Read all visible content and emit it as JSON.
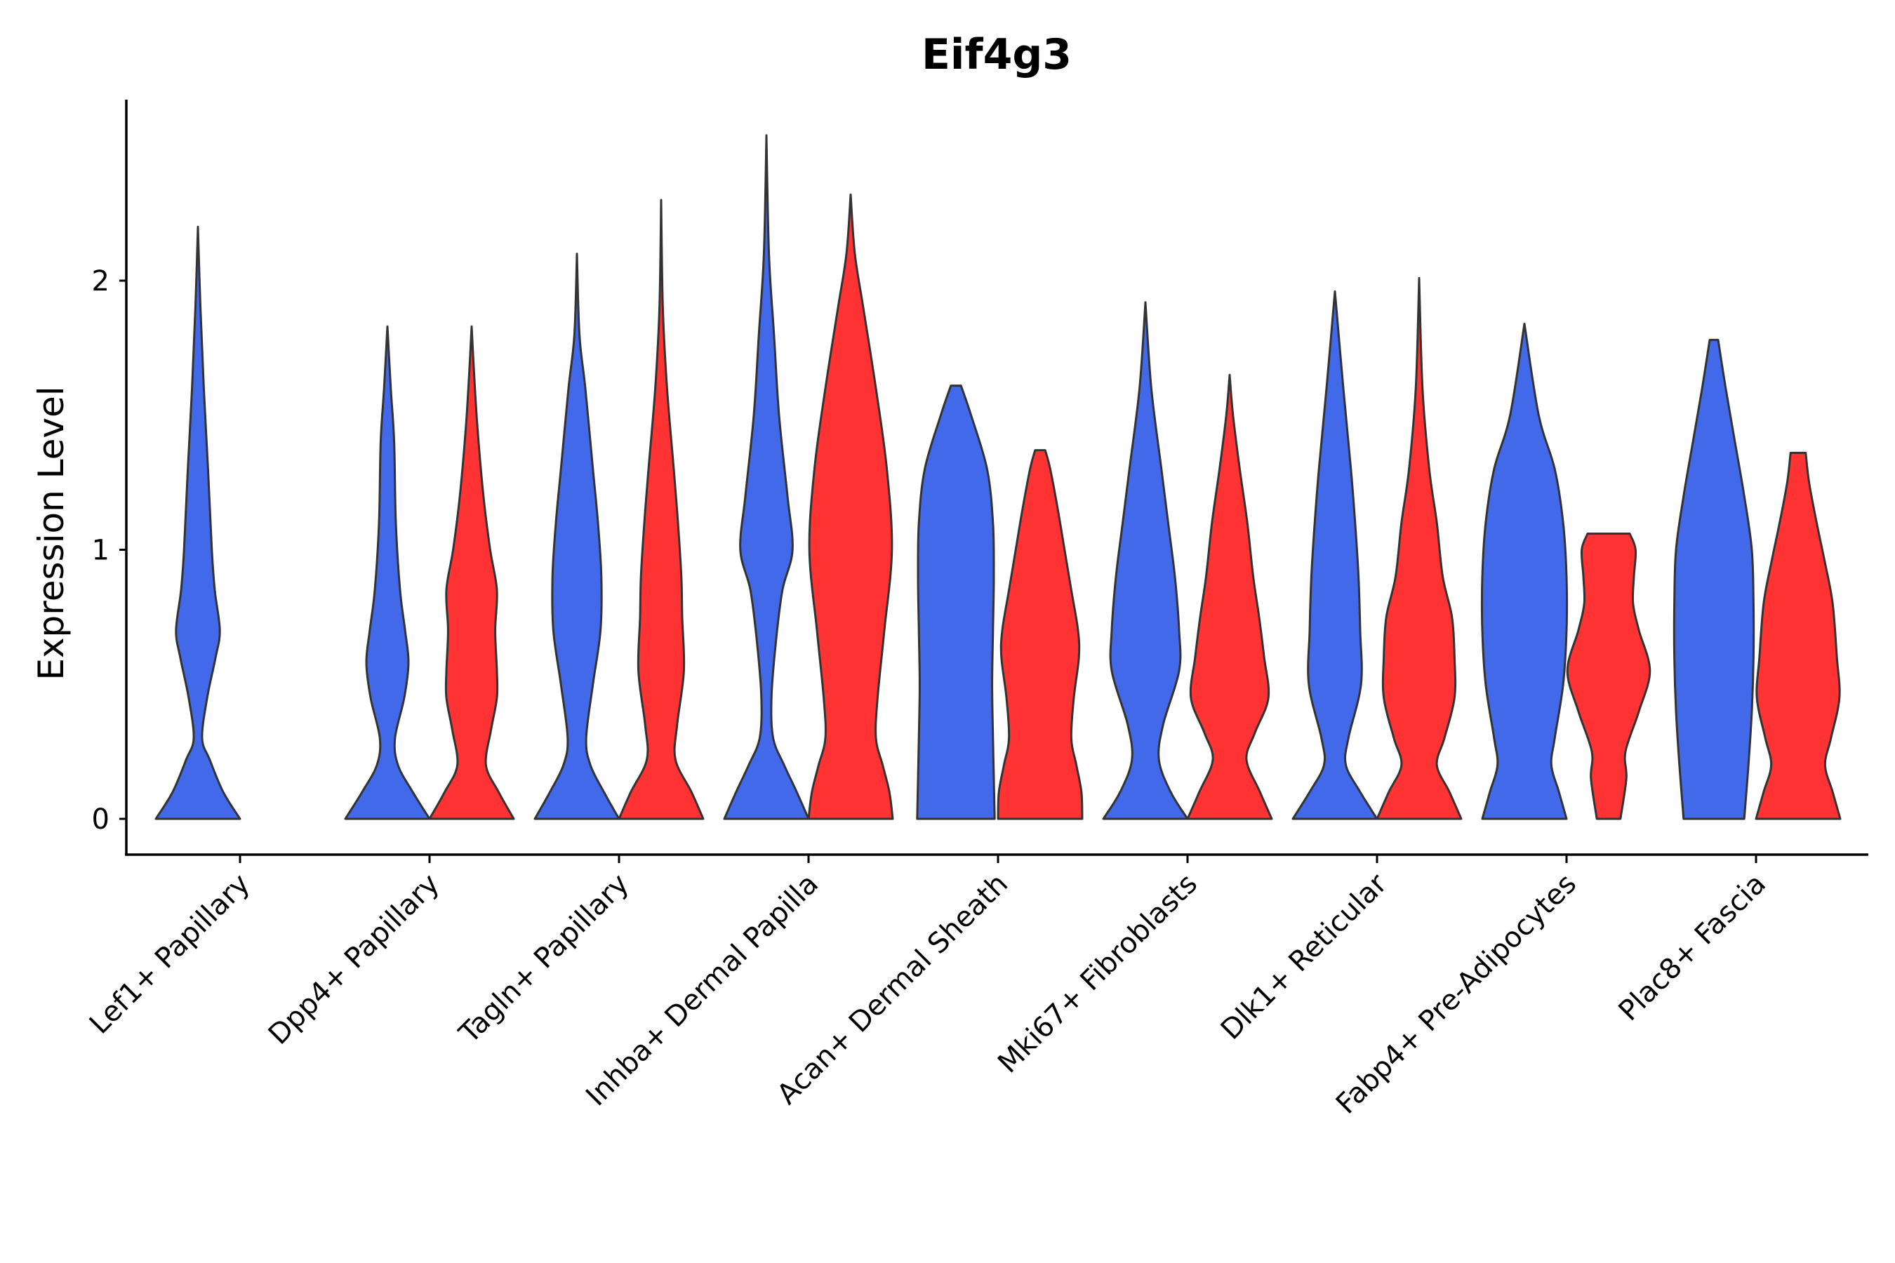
{
  "chart_data": {
    "type": "violin",
    "title": "Eif4g3",
    "xlabel": "",
    "ylabel": "Expression Level",
    "ylim": [
      -0.13,
      2.68
    ],
    "yticks": [
      0,
      1,
      2
    ],
    "grid": false,
    "legend": "none",
    "colors": {
      "group_a": "#4169E9",
      "group_b": "#FF3333",
      "outline": "#333333"
    },
    "categories": [
      "Lef1+ Papillary",
      "Dpp4+ Papillary",
      "Tagln+ Papillary",
      "Inhba+ Dermal Papilla",
      "Acan+ Dermal Sheath",
      "Mki67+ Fibroblasts",
      "Dlk1+ Reticular",
      "Fabp4+ Pre-Adipocytes",
      "Plac8+ Fascia"
    ],
    "series": [
      {
        "name": "group_a",
        "color": "#4169E9",
        "violins": [
          {
            "category": "Lef1+ Papillary",
            "max": 2.2,
            "profile": [
              [
                0,
                1.0
              ],
              [
                0.1,
                0.6
              ],
              [
                0.22,
                0.28
              ],
              [
                0.3,
                0.1
              ],
              [
                0.45,
                0.22
              ],
              [
                0.6,
                0.42
              ],
              [
                0.7,
                0.52
              ],
              [
                0.85,
                0.4
              ],
              [
                1.0,
                0.33
              ],
              [
                1.3,
                0.24
              ],
              [
                1.6,
                0.14
              ],
              [
                1.9,
                0.06
              ],
              [
                2.2,
                0.0
              ]
            ]
          },
          {
            "category": "Dpp4+ Papillary",
            "max": 1.83,
            "profile": [
              [
                0,
                1.0
              ],
              [
                0.1,
                0.6
              ],
              [
                0.2,
                0.25
              ],
              [
                0.3,
                0.18
              ],
              [
                0.45,
                0.4
              ],
              [
                0.58,
                0.5
              ],
              [
                0.7,
                0.42
              ],
              [
                0.85,
                0.3
              ],
              [
                1.1,
                0.2
              ],
              [
                1.4,
                0.16
              ],
              [
                1.6,
                0.08
              ],
              [
                1.83,
                0.0
              ]
            ]
          },
          {
            "category": "Tagln+ Papillary",
            "max": 2.1,
            "profile": [
              [
                0,
                1.0
              ],
              [
                0.1,
                0.64
              ],
              [
                0.2,
                0.32
              ],
              [
                0.3,
                0.22
              ],
              [
                0.5,
                0.38
              ],
              [
                0.7,
                0.56
              ],
              [
                0.9,
                0.58
              ],
              [
                1.1,
                0.5
              ],
              [
                1.3,
                0.38
              ],
              [
                1.6,
                0.2
              ],
              [
                1.8,
                0.06
              ],
              [
                2.1,
                0.0
              ]
            ]
          },
          {
            "category": "Inhba+ Dermal Papilla",
            "max": 2.54,
            "profile": [
              [
                0,
                1.0
              ],
              [
                0.1,
                0.72
              ],
              [
                0.2,
                0.42
              ],
              [
                0.3,
                0.16
              ],
              [
                0.45,
                0.12
              ],
              [
                0.65,
                0.22
              ],
              [
                0.85,
                0.38
              ],
              [
                1.0,
                0.62
              ],
              [
                1.2,
                0.5
              ],
              [
                1.5,
                0.3
              ],
              [
                1.8,
                0.18
              ],
              [
                2.1,
                0.06
              ],
              [
                2.54,
                0.0
              ]
            ]
          },
          {
            "category": "Acan+ Dermal Sheath",
            "max": 1.61,
            "profile": [
              [
                0,
                0.92
              ],
              [
                0.15,
                0.9
              ],
              [
                0.3,
                0.88
              ],
              [
                0.5,
                0.86
              ],
              [
                0.7,
                0.88
              ],
              [
                0.9,
                0.9
              ],
              [
                1.1,
                0.88
              ],
              [
                1.3,
                0.74
              ],
              [
                1.5,
                0.36
              ],
              [
                1.61,
                0.12
              ]
            ]
          },
          {
            "category": "Mki67+ Fibroblasts",
            "max": 1.92,
            "profile": [
              [
                0,
                1.0
              ],
              [
                0.1,
                0.6
              ],
              [
                0.22,
                0.32
              ],
              [
                0.35,
                0.42
              ],
              [
                0.55,
                0.8
              ],
              [
                0.7,
                0.8
              ],
              [
                0.9,
                0.7
              ],
              [
                1.1,
                0.54
              ],
              [
                1.3,
                0.38
              ],
              [
                1.6,
                0.14
              ],
              [
                1.92,
                0.0
              ]
            ]
          },
          {
            "category": "Dlk1+ Reticular",
            "max": 1.96,
            "profile": [
              [
                0,
                1.0
              ],
              [
                0.1,
                0.6
              ],
              [
                0.2,
                0.26
              ],
              [
                0.3,
                0.32
              ],
              [
                0.5,
                0.62
              ],
              [
                0.7,
                0.6
              ],
              [
                0.9,
                0.56
              ],
              [
                1.1,
                0.48
              ],
              [
                1.3,
                0.38
              ],
              [
                1.6,
                0.2
              ],
              [
                1.96,
                0.0
              ]
            ]
          },
          {
            "category": "Fabp4+ Pre-Adipocytes",
            "max": 1.84,
            "profile": [
              [
                0,
                1.0
              ],
              [
                0.1,
                0.82
              ],
              [
                0.2,
                0.64
              ],
              [
                0.3,
                0.72
              ],
              [
                0.5,
                0.92
              ],
              [
                0.7,
                1.0
              ],
              [
                0.9,
                1.0
              ],
              [
                1.1,
                0.92
              ],
              [
                1.3,
                0.72
              ],
              [
                1.5,
                0.34
              ],
              [
                1.84,
                0.0
              ]
            ]
          },
          {
            "category": "Plac8+ Fascia",
            "max": 1.78,
            "profile": [
              [
                0,
                0.72
              ],
              [
                0.2,
                0.82
              ],
              [
                0.4,
                0.9
              ],
              [
                0.6,
                0.94
              ],
              [
                0.8,
                0.94
              ],
              [
                1.0,
                0.9
              ],
              [
                1.2,
                0.72
              ],
              [
                1.4,
                0.5
              ],
              [
                1.6,
                0.28
              ],
              [
                1.78,
                0.1
              ]
            ]
          }
        ]
      },
      {
        "name": "group_b",
        "color": "#FF3333",
        "violins": [
          {
            "category": "Dpp4+ Papillary",
            "max": 1.83,
            "profile": [
              [
                0,
                1.0
              ],
              [
                0.1,
                0.64
              ],
              [
                0.2,
                0.34
              ],
              [
                0.33,
                0.46
              ],
              [
                0.45,
                0.6
              ],
              [
                0.55,
                0.6
              ],
              [
                0.7,
                0.56
              ],
              [
                0.85,
                0.6
              ],
              [
                1.0,
                0.44
              ],
              [
                1.2,
                0.28
              ],
              [
                1.45,
                0.14
              ],
              [
                1.65,
                0.06
              ],
              [
                1.83,
                0.0
              ]
            ]
          },
          {
            "category": "Tagln+ Papillary",
            "max": 2.3,
            "profile": [
              [
                0,
                1.0
              ],
              [
                0.1,
                0.72
              ],
              [
                0.22,
                0.34
              ],
              [
                0.35,
                0.38
              ],
              [
                0.55,
                0.54
              ],
              [
                0.75,
                0.5
              ],
              [
                0.9,
                0.48
              ],
              [
                1.1,
                0.4
              ],
              [
                1.3,
                0.3
              ],
              [
                1.6,
                0.14
              ],
              [
                1.9,
                0.04
              ],
              [
                2.3,
                0.0
              ]
            ]
          },
          {
            "category": "Inhba+ Dermal Papilla",
            "max": 2.32,
            "profile": [
              [
                0,
                1.0
              ],
              [
                0.1,
                0.92
              ],
              [
                0.2,
                0.76
              ],
              [
                0.3,
                0.6
              ],
              [
                0.45,
                0.64
              ],
              [
                0.7,
                0.8
              ],
              [
                1.0,
                0.98
              ],
              [
                1.3,
                0.86
              ],
              [
                1.6,
                0.6
              ],
              [
                1.9,
                0.3
              ],
              [
                2.1,
                0.1
              ],
              [
                2.32,
                0.0
              ]
            ]
          },
          {
            "category": "Acan+ Dermal Sheath",
            "max": 1.37,
            "profile": [
              [
                0,
                1.0
              ],
              [
                0.1,
                0.98
              ],
              [
                0.2,
                0.86
              ],
              [
                0.3,
                0.74
              ],
              [
                0.45,
                0.8
              ],
              [
                0.6,
                0.92
              ],
              [
                0.7,
                0.9
              ],
              [
                0.85,
                0.74
              ],
              [
                1.0,
                0.58
              ],
              [
                1.15,
                0.42
              ],
              [
                1.3,
                0.24
              ],
              [
                1.37,
                0.12
              ]
            ]
          },
          {
            "category": "Mki67+ Fibroblasts",
            "max": 1.65,
            "profile": [
              [
                0,
                1.0
              ],
              [
                0.1,
                0.72
              ],
              [
                0.22,
                0.4
              ],
              [
                0.32,
                0.6
              ],
              [
                0.45,
                0.92
              ],
              [
                0.6,
                0.82
              ],
              [
                0.75,
                0.7
              ],
              [
                0.9,
                0.56
              ],
              [
                1.1,
                0.42
              ],
              [
                1.3,
                0.24
              ],
              [
                1.5,
                0.08
              ],
              [
                1.65,
                0.0
              ]
            ]
          },
          {
            "category": "Dlk1+ Reticular",
            "max": 2.01,
            "profile": [
              [
                0,
                1.0
              ],
              [
                0.1,
                0.72
              ],
              [
                0.2,
                0.42
              ],
              [
                0.3,
                0.6
              ],
              [
                0.45,
                0.84
              ],
              [
                0.6,
                0.84
              ],
              [
                0.75,
                0.78
              ],
              [
                0.9,
                0.56
              ],
              [
                1.1,
                0.42
              ],
              [
                1.3,
                0.24
              ],
              [
                1.6,
                0.08
              ],
              [
                2.01,
                0.0
              ]
            ]
          },
          {
            "category": "Fabp4+ Pre-Adipocytes",
            "max": 1.06,
            "profile": [
              [
                0,
                0.28
              ],
              [
                0.15,
                0.42
              ],
              [
                0.25,
                0.4
              ],
              [
                0.4,
                0.72
              ],
              [
                0.55,
                0.98
              ],
              [
                0.7,
                0.72
              ],
              [
                0.8,
                0.58
              ],
              [
                0.9,
                0.6
              ],
              [
                1.0,
                0.64
              ],
              [
                1.06,
                0.5
              ]
            ]
          },
          {
            "category": "Plac8+ Fascia",
            "max": 1.36,
            "profile": [
              [
                0,
                1.0
              ],
              [
                0.1,
                0.82
              ],
              [
                0.2,
                0.64
              ],
              [
                0.3,
                0.78
              ],
              [
                0.45,
                0.98
              ],
              [
                0.6,
                0.92
              ],
              [
                0.8,
                0.82
              ],
              [
                0.95,
                0.64
              ],
              [
                1.1,
                0.44
              ],
              [
                1.25,
                0.26
              ],
              [
                1.36,
                0.18
              ]
            ]
          }
        ]
      }
    ]
  }
}
